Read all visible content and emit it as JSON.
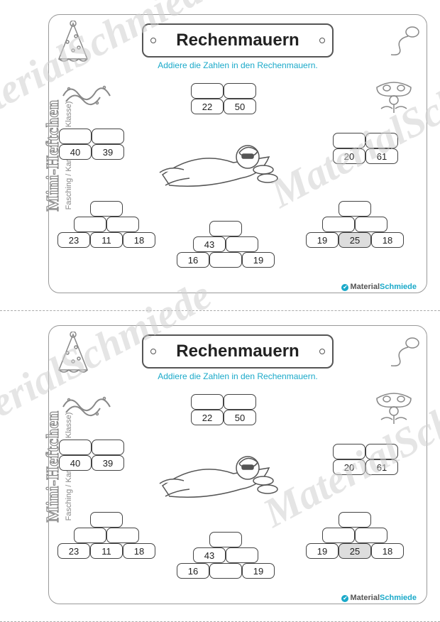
{
  "watermark_text": "MaterialSchmiede",
  "sidebar": {
    "title": "Mini-Heftchen",
    "subtitle": "Fasching / Karneval (2. Klasse)"
  },
  "header": {
    "title": "Rechenmauern",
    "instruction": "Addiere die Zahlen in den Rechenmauern."
  },
  "footer": {
    "brand_a": "Material",
    "brand_b": "Schmiede"
  },
  "walls": {
    "top_center": {
      "row_top": [
        "",
        ""
      ],
      "row_bottom": [
        "22",
        "50"
      ]
    },
    "mid_left": {
      "row_top": [
        "",
        ""
      ],
      "row_bottom": [
        "40",
        "39"
      ]
    },
    "mid_right": {
      "row_top": [
        "",
        ""
      ],
      "row_bottom": [
        "20",
        "61"
      ]
    },
    "bot_left": {
      "row0": [
        ""
      ],
      "row1": [
        "",
        ""
      ],
      "row2": [
        "23",
        "11",
        "18"
      ]
    },
    "bot_center": {
      "row0": [
        ""
      ],
      "row1": [
        "43",
        ""
      ],
      "row2": [
        "16",
        "",
        "19"
      ]
    },
    "bot_right": {
      "row0": [
        ""
      ],
      "row1": [
        "",
        ""
      ],
      "row2": [
        "19",
        "25",
        "18"
      ],
      "shaded_index": 1
    }
  },
  "colors": {
    "instruction": "#1aa9c9",
    "outline": "#555555",
    "watermark": "#d0d0d0"
  },
  "brick_size": {
    "w": 46,
    "h": 22
  }
}
